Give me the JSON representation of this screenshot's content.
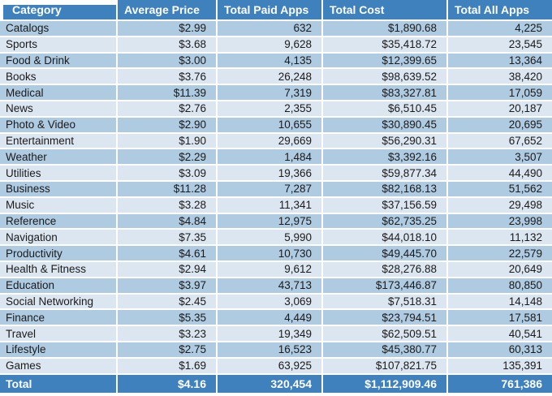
{
  "chart_data": {
    "type": "table",
    "columns": [
      "Category",
      "Average Price",
      "Total Paid Apps",
      "Total Cost",
      "Total All Apps"
    ],
    "rows": [
      [
        "Catalogs",
        "$2.99",
        "632",
        "$1,890.68",
        "4,225"
      ],
      [
        "Sports",
        "$3.68",
        "9,628",
        "$35,418.72",
        "23,545"
      ],
      [
        "Food & Drink",
        "$3.00",
        "4,135",
        "$12,399.65",
        "13,364"
      ],
      [
        "Books",
        "$3.76",
        "26,248",
        "$98,639.52",
        "38,420"
      ],
      [
        "Medical",
        "$11.39",
        "7,319",
        "$83,327.81",
        "17,059"
      ],
      [
        "News",
        "$2.76",
        "2,355",
        "$6,510.45",
        "20,187"
      ],
      [
        "Photo & Video",
        "$2.90",
        "10,655",
        "$30,890.45",
        "20,695"
      ],
      [
        "Entertainment",
        "$1.90",
        "29,669",
        "$56,290.31",
        "67,652"
      ],
      [
        "Weather",
        "$2.29",
        "1,484",
        "$3,392.16",
        "3,507"
      ],
      [
        "Utilities",
        "$3.09",
        "19,366",
        "$59,877.34",
        "44,490"
      ],
      [
        "Business",
        "$11.28",
        "7,287",
        "$82,168.13",
        "51,562"
      ],
      [
        "Music",
        "$3.28",
        "11,341",
        "$37,156.59",
        "29,498"
      ],
      [
        "Reference",
        "$4.84",
        "12,975",
        "$62,735.25",
        "23,998"
      ],
      [
        "Navigation",
        "$7.35",
        "5,990",
        "$44,018.10",
        "11,132"
      ],
      [
        "Productivity",
        "$4.61",
        "10,730",
        "$49,445.70",
        "22,579"
      ],
      [
        "Health & Fitness",
        "$2.94",
        "9,612",
        "$28,276.88",
        "20,649"
      ],
      [
        "Education",
        "$3.97",
        "43,713",
        "$173,446.87",
        "80,850"
      ],
      [
        "Social Networking",
        "$2.45",
        "3,069",
        "$7,518.31",
        "14,148"
      ],
      [
        "Finance",
        "$5.35",
        "4,449",
        "$23,794.51",
        "17,581"
      ],
      [
        "Travel",
        "$3.23",
        "19,349",
        "$62,509.51",
        "40,541"
      ],
      [
        "Lifestyle",
        "$2.75",
        "16,523",
        "$45,380.77",
        "60,313"
      ],
      [
        "Games",
        "$1.69",
        "63,925",
        "$107,821.75",
        "135,391"
      ]
    ],
    "total_row": [
      "Total",
      "$4.16",
      "320,454",
      "$1,112,909.46",
      "761,386"
    ],
    "colors": {
      "header_bg": "#3F81BD",
      "header_text": "#FFFFFF",
      "row_dark": "#AECBE2",
      "row_light": "#DBE6F1",
      "body_text": "#1B1B1B",
      "separator": "#FFFFFF"
    }
  }
}
